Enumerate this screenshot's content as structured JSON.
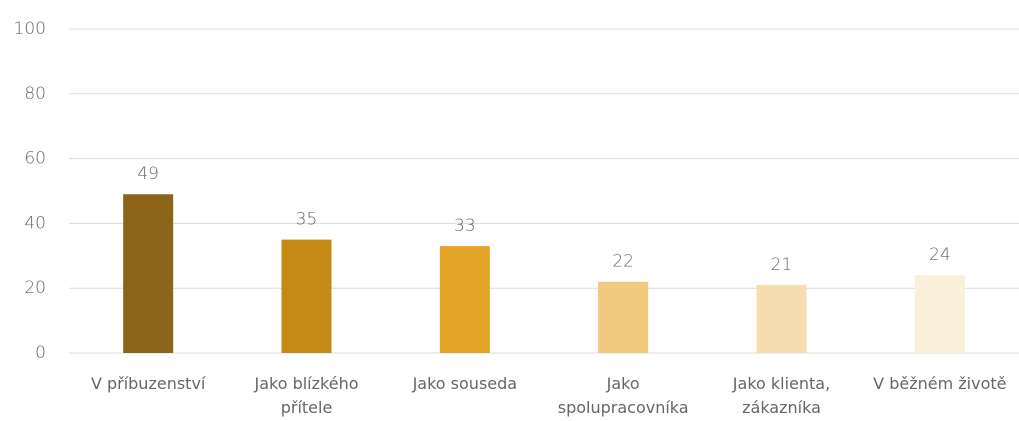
{
  "chart_data": {
    "type": "bar",
    "categories": [
      "V příbuzenství",
      "Jako blízkého přítele",
      "Jako souseda",
      "Jako spolupracovníka",
      "Jako klienta, zákazníka",
      "V běžném životě"
    ],
    "values": [
      49,
      35,
      33,
      22,
      21,
      24
    ],
    "colors": [
      "#8b6419",
      "#c48a16",
      "#e4a526",
      "#f0c97f",
      "#f5ddb0",
      "#faefd9"
    ],
    "ylim": [
      0,
      100
    ],
    "yticks": [
      0,
      20,
      40,
      60,
      80,
      100
    ],
    "grid": true
  }
}
